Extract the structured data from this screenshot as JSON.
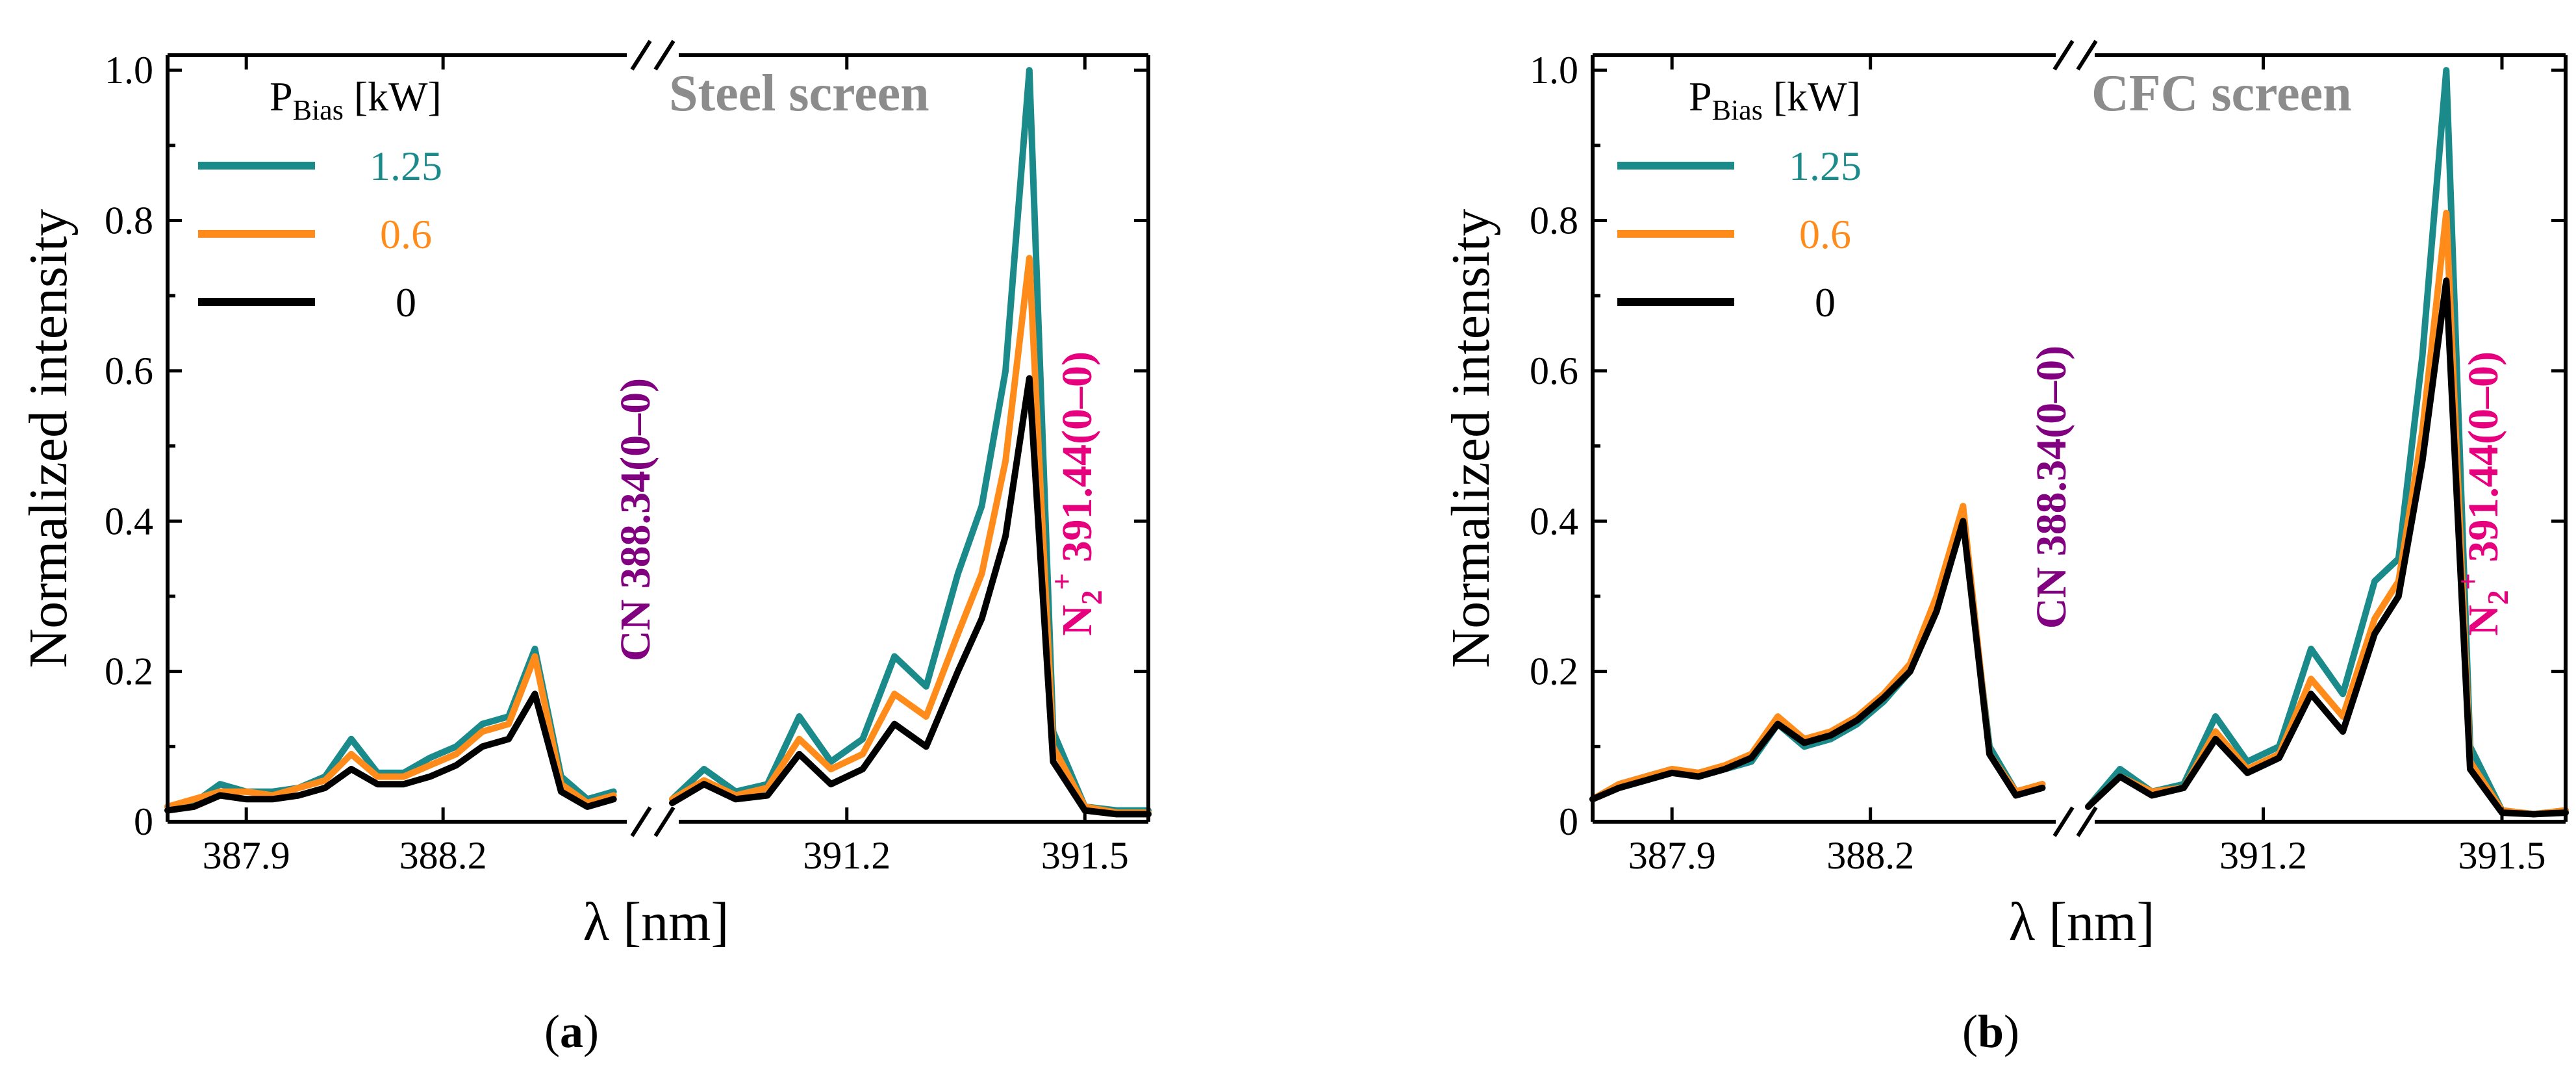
{
  "chart_data": [
    {
      "type": "line",
      "panel_label": "a",
      "title": "Steel screen",
      "xlabel": "λ [nm]",
      "ylabel": "Normalized intensity",
      "ylim": [
        0,
        1.02
      ],
      "yticks": [
        "0",
        "0.2",
        "0.4",
        "0.6",
        "0.8",
        "1.0"
      ],
      "xticks": [
        "387.9",
        "388.2",
        "391.2",
        "391.5"
      ],
      "legend_title": {
        "main": "P",
        "sub": "Bias",
        "unit": " [kW]"
      },
      "legend_position": "top-left",
      "peak_labels": {
        "cn": "CN 388.34(0–0)",
        "n2_base": "N",
        "n2_sub": "2",
        "n2_sup": "+",
        "n2_rest": " 391.44(0–0)"
      },
      "colors": {
        "title": "#8c8c8c",
        "cn": "#800080",
        "n2": "#e6007e"
      },
      "segments": [
        {
          "xlim": [
            387.78,
            388.49
          ],
          "xticks": [
            387.9,
            388.2
          ]
        },
        {
          "xlim": [
            390.98,
            391.58
          ],
          "xticks": [
            391.2,
            391.5
          ]
        }
      ],
      "series": [
        {
          "name": "1.25",
          "color": "#1a8a8a",
          "seg1": [
            [
              387.78,
              0.02
            ],
            [
              387.82,
              0.025
            ],
            [
              387.86,
              0.05
            ],
            [
              387.9,
              0.04
            ],
            [
              387.94,
              0.04
            ],
            [
              387.98,
              0.045
            ],
            [
              388.02,
              0.06
            ],
            [
              388.06,
              0.11
            ],
            [
              388.1,
              0.065
            ],
            [
              388.14,
              0.065
            ],
            [
              388.18,
              0.085
            ],
            [
              388.22,
              0.1
            ],
            [
              388.26,
              0.13
            ],
            [
              388.3,
              0.14
            ],
            [
              388.34,
              0.23
            ],
            [
              388.38,
              0.06
            ],
            [
              388.42,
              0.03
            ],
            [
              388.46,
              0.04
            ]
          ],
          "seg2": [
            [
              390.98,
              0.03
            ],
            [
              391.02,
              0.07
            ],
            [
              391.06,
              0.04
            ],
            [
              391.1,
              0.05
            ],
            [
              391.14,
              0.14
            ],
            [
              391.18,
              0.08
            ],
            [
              391.22,
              0.11
            ],
            [
              391.26,
              0.22
            ],
            [
              391.3,
              0.18
            ],
            [
              391.34,
              0.33
            ],
            [
              391.37,
              0.42
            ],
            [
              391.4,
              0.6
            ],
            [
              391.43,
              1.0
            ],
            [
              391.46,
              0.12
            ],
            [
              391.5,
              0.02
            ],
            [
              391.54,
              0.015
            ],
            [
              391.58,
              0.015
            ]
          ]
        },
        {
          "name": "0.6",
          "color": "#ff8c1a",
          "seg1": [
            [
              387.78,
              0.02
            ],
            [
              387.82,
              0.03
            ],
            [
              387.86,
              0.04
            ],
            [
              387.9,
              0.04
            ],
            [
              387.94,
              0.035
            ],
            [
              387.98,
              0.045
            ],
            [
              388.02,
              0.055
            ],
            [
              388.06,
              0.09
            ],
            [
              388.1,
              0.06
            ],
            [
              388.14,
              0.06
            ],
            [
              388.18,
              0.075
            ],
            [
              388.22,
              0.09
            ],
            [
              388.26,
              0.12
            ],
            [
              388.3,
              0.13
            ],
            [
              388.34,
              0.22
            ],
            [
              388.38,
              0.05
            ],
            [
              388.42,
              0.025
            ],
            [
              388.46,
              0.035
            ]
          ],
          "seg2": [
            [
              390.98,
              0.03
            ],
            [
              391.02,
              0.055
            ],
            [
              391.06,
              0.035
            ],
            [
              391.1,
              0.045
            ],
            [
              391.14,
              0.11
            ],
            [
              391.18,
              0.07
            ],
            [
              391.22,
              0.09
            ],
            [
              391.26,
              0.17
            ],
            [
              391.3,
              0.14
            ],
            [
              391.34,
              0.25
            ],
            [
              391.37,
              0.33
            ],
            [
              391.4,
              0.48
            ],
            [
              391.43,
              0.75
            ],
            [
              391.46,
              0.1
            ],
            [
              391.5,
              0.02
            ],
            [
              391.54,
              0.012
            ],
            [
              391.58,
              0.012
            ]
          ]
        },
        {
          "name": "0",
          "color": "#000000",
          "seg1": [
            [
              387.78,
              0.015
            ],
            [
              387.82,
              0.02
            ],
            [
              387.86,
              0.035
            ],
            [
              387.9,
              0.03
            ],
            [
              387.94,
              0.03
            ],
            [
              387.98,
              0.035
            ],
            [
              388.02,
              0.045
            ],
            [
              388.06,
              0.07
            ],
            [
              388.1,
              0.05
            ],
            [
              388.14,
              0.05
            ],
            [
              388.18,
              0.06
            ],
            [
              388.22,
              0.075
            ],
            [
              388.26,
              0.1
            ],
            [
              388.3,
              0.11
            ],
            [
              388.34,
              0.17
            ],
            [
              388.38,
              0.04
            ],
            [
              388.42,
              0.02
            ],
            [
              388.46,
              0.03
            ]
          ],
          "seg2": [
            [
              390.98,
              0.025
            ],
            [
              391.02,
              0.05
            ],
            [
              391.06,
              0.03
            ],
            [
              391.1,
              0.035
            ],
            [
              391.14,
              0.09
            ],
            [
              391.18,
              0.05
            ],
            [
              391.22,
              0.07
            ],
            [
              391.26,
              0.13
            ],
            [
              391.3,
              0.1
            ],
            [
              391.34,
              0.2
            ],
            [
              391.37,
              0.27
            ],
            [
              391.4,
              0.38
            ],
            [
              391.43,
              0.59
            ],
            [
              391.46,
              0.08
            ],
            [
              391.5,
              0.015
            ],
            [
              391.54,
              0.01
            ],
            [
              391.58,
              0.01
            ]
          ]
        }
      ]
    },
    {
      "type": "line",
      "panel_label": "b",
      "title": "CFC screen",
      "xlabel": "λ [nm]",
      "ylabel": "Normalized intensity",
      "ylim": [
        0,
        1.02
      ],
      "yticks": [
        "0",
        "0.2",
        "0.4",
        "0.6",
        "0.8",
        "1.0"
      ],
      "xticks": [
        "387.9",
        "388.2",
        "391.2",
        "391.5"
      ],
      "legend_title": {
        "main": "P",
        "sub": "Bias",
        "unit": " [kW]"
      },
      "legend_position": "top-left",
      "peak_labels": {
        "cn": "CN 388.34(0–0)",
        "n2_base": "N",
        "n2_sub": "2",
        "n2_sup": "+",
        "n2_rest": " 391.44(0–0)"
      },
      "colors": {
        "title": "#8c8c8c",
        "cn": "#800080",
        "n2": "#e6007e"
      },
      "segments": [
        {
          "xlim": [
            387.78,
            388.49
          ],
          "xticks": [
            387.9,
            388.2
          ]
        },
        {
          "xlim": [
            390.98,
            391.58
          ],
          "xticks": [
            391.2,
            391.5
          ]
        }
      ],
      "series": [
        {
          "name": "1.25",
          "color": "#1a8a8a",
          "seg1": [
            [
              387.78,
              0.03
            ],
            [
              387.82,
              0.05
            ],
            [
              387.86,
              0.06
            ],
            [
              387.9,
              0.07
            ],
            [
              387.94,
              0.06
            ],
            [
              387.98,
              0.07
            ],
            [
              388.02,
              0.08
            ],
            [
              388.06,
              0.13
            ],
            [
              388.1,
              0.1
            ],
            [
              388.14,
              0.11
            ],
            [
              388.18,
              0.13
            ],
            [
              388.22,
              0.16
            ],
            [
              388.26,
              0.2
            ],
            [
              388.3,
              0.28
            ],
            [
              388.34,
              0.4
            ],
            [
              388.38,
              0.1
            ],
            [
              388.42,
              0.04
            ],
            [
              388.46,
              0.05
            ]
          ],
          "seg2": [
            [
              390.98,
              0.02
            ],
            [
              391.02,
              0.07
            ],
            [
              391.06,
              0.04
            ],
            [
              391.1,
              0.05
            ],
            [
              391.14,
              0.14
            ],
            [
              391.18,
              0.08
            ],
            [
              391.22,
              0.1
            ],
            [
              391.26,
              0.23
            ],
            [
              391.3,
              0.17
            ],
            [
              391.34,
              0.32
            ],
            [
              391.37,
              0.35
            ],
            [
              391.4,
              0.62
            ],
            [
              391.43,
              1.0
            ],
            [
              391.46,
              0.1
            ],
            [
              391.5,
              0.015
            ],
            [
              391.54,
              0.01
            ],
            [
              391.58,
              0.015
            ]
          ]
        },
        {
          "name": "0.6",
          "color": "#ff8c1a",
          "seg1": [
            [
              387.78,
              0.03
            ],
            [
              387.82,
              0.05
            ],
            [
              387.86,
              0.06
            ],
            [
              387.9,
              0.07
            ],
            [
              387.94,
              0.065
            ],
            [
              387.98,
              0.075
            ],
            [
              388.02,
              0.09
            ],
            [
              388.06,
              0.14
            ],
            [
              388.1,
              0.11
            ],
            [
              388.14,
              0.12
            ],
            [
              388.18,
              0.14
            ],
            [
              388.22,
              0.17
            ],
            [
              388.26,
              0.21
            ],
            [
              388.3,
              0.3
            ],
            [
              388.34,
              0.42
            ],
            [
              388.38,
              0.09
            ],
            [
              388.42,
              0.04
            ],
            [
              388.46,
              0.05
            ]
          ],
          "seg2": [
            [
              390.98,
              0.02
            ],
            [
              391.02,
              0.06
            ],
            [
              391.06,
              0.04
            ],
            [
              391.1,
              0.045
            ],
            [
              391.14,
              0.12
            ],
            [
              391.18,
              0.07
            ],
            [
              391.22,
              0.09
            ],
            [
              391.26,
              0.19
            ],
            [
              391.3,
              0.14
            ],
            [
              391.34,
              0.27
            ],
            [
              391.37,
              0.32
            ],
            [
              391.4,
              0.52
            ],
            [
              391.43,
              0.81
            ],
            [
              391.46,
              0.08
            ],
            [
              391.5,
              0.015
            ],
            [
              391.54,
              0.01
            ],
            [
              391.58,
              0.015
            ]
          ]
        },
        {
          "name": "0",
          "color": "#000000",
          "seg1": [
            [
              387.78,
              0.03
            ],
            [
              387.82,
              0.045
            ],
            [
              387.86,
              0.055
            ],
            [
              387.9,
              0.065
            ],
            [
              387.94,
              0.06
            ],
            [
              387.98,
              0.07
            ],
            [
              388.02,
              0.085
            ],
            [
              388.06,
              0.13
            ],
            [
              388.1,
              0.105
            ],
            [
              388.14,
              0.115
            ],
            [
              388.18,
              0.135
            ],
            [
              388.22,
              0.165
            ],
            [
              388.26,
              0.2
            ],
            [
              388.3,
              0.28
            ],
            [
              388.34,
              0.4
            ],
            [
              388.38,
              0.09
            ],
            [
              388.42,
              0.035
            ],
            [
              388.46,
              0.045
            ]
          ],
          "seg2": [
            [
              390.98,
              0.02
            ],
            [
              391.02,
              0.06
            ],
            [
              391.06,
              0.035
            ],
            [
              391.1,
              0.045
            ],
            [
              391.14,
              0.11
            ],
            [
              391.18,
              0.065
            ],
            [
              391.22,
              0.085
            ],
            [
              391.26,
              0.17
            ],
            [
              391.3,
              0.12
            ],
            [
              391.34,
              0.25
            ],
            [
              391.37,
              0.3
            ],
            [
              391.4,
              0.48
            ],
            [
              391.43,
              0.72
            ],
            [
              391.46,
              0.07
            ],
            [
              391.5,
              0.012
            ],
            [
              391.54,
              0.01
            ],
            [
              391.58,
              0.012
            ]
          ]
        }
      ]
    }
  ]
}
